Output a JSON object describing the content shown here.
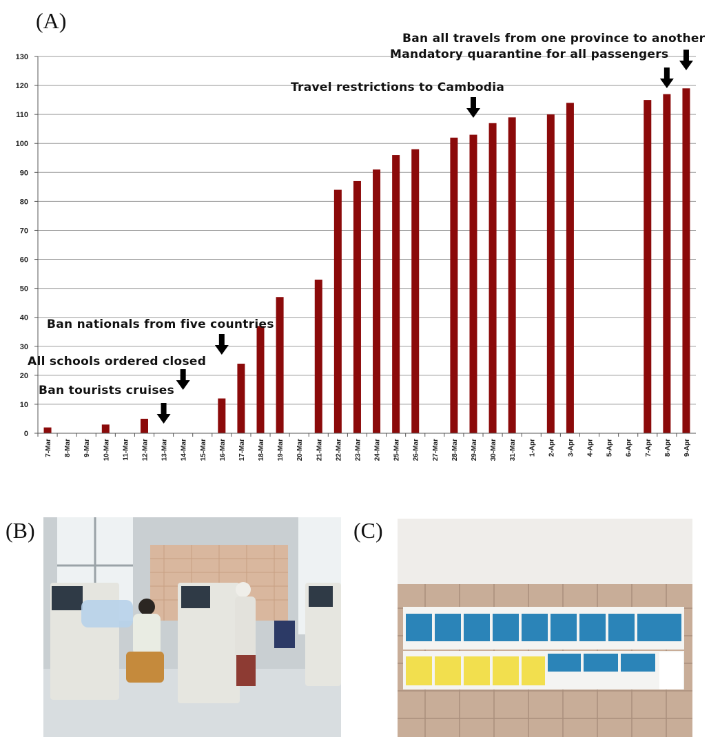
{
  "panels": {
    "a_label": "(A)",
    "b_label": "(B)",
    "c_label": "(C)"
  },
  "chart_data": {
    "type": "bar",
    "title": "",
    "xlabel": "",
    "ylabel": "",
    "ylim": [
      0,
      130
    ],
    "yticks": [
      0,
      10,
      20,
      30,
      40,
      50,
      60,
      70,
      80,
      90,
      100,
      110,
      120,
      130
    ],
    "grid": true,
    "bar_color": "#8b0a0a",
    "categories": [
      "7-Mar",
      "8-Mar",
      "9-Mar",
      "10-Mar",
      "11-Mar",
      "12-Mar",
      "13-Mar",
      "14-Mar",
      "15-Mar",
      "16-Mar",
      "17-Mar",
      "18-Mar",
      "19-Mar",
      "20-Mar",
      "21-Mar",
      "22-Mar",
      "23-Mar",
      "24-Mar",
      "25-Mar",
      "26-Mar",
      "27-Mar",
      "28-Mar",
      "29-Mar",
      "30-Mar",
      "31-Mar",
      "1-Apr",
      "2-Apr",
      "3-Apr",
      "4-Apr",
      "5-Apr",
      "6-Apr",
      "7-Apr",
      "8-Apr",
      "9-Apr"
    ],
    "values": [
      2,
      null,
      null,
      3,
      null,
      5,
      null,
      null,
      null,
      12,
      24,
      37,
      47,
      null,
      53,
      84,
      87,
      91,
      96,
      98,
      null,
      102,
      103,
      107,
      109,
      null,
      110,
      114,
      null,
      null,
      null,
      115,
      117,
      119
    ],
    "annotations": [
      {
        "text": "Ban tourists cruises",
        "category": "13-Mar"
      },
      {
        "text": "All schools ordered closed",
        "category": "14-Mar"
      },
      {
        "text": "Ban nationals from five countries",
        "category": "16-Mar"
      },
      {
        "text": "Travel restrictions to Cambodia",
        "category": "29-Mar"
      },
      {
        "text": "Mandatory quarantine for all passengers",
        "category": "8-Apr"
      },
      {
        "text": "Ban all travels from one province to another",
        "category": "9-Apr"
      }
    ]
  }
}
